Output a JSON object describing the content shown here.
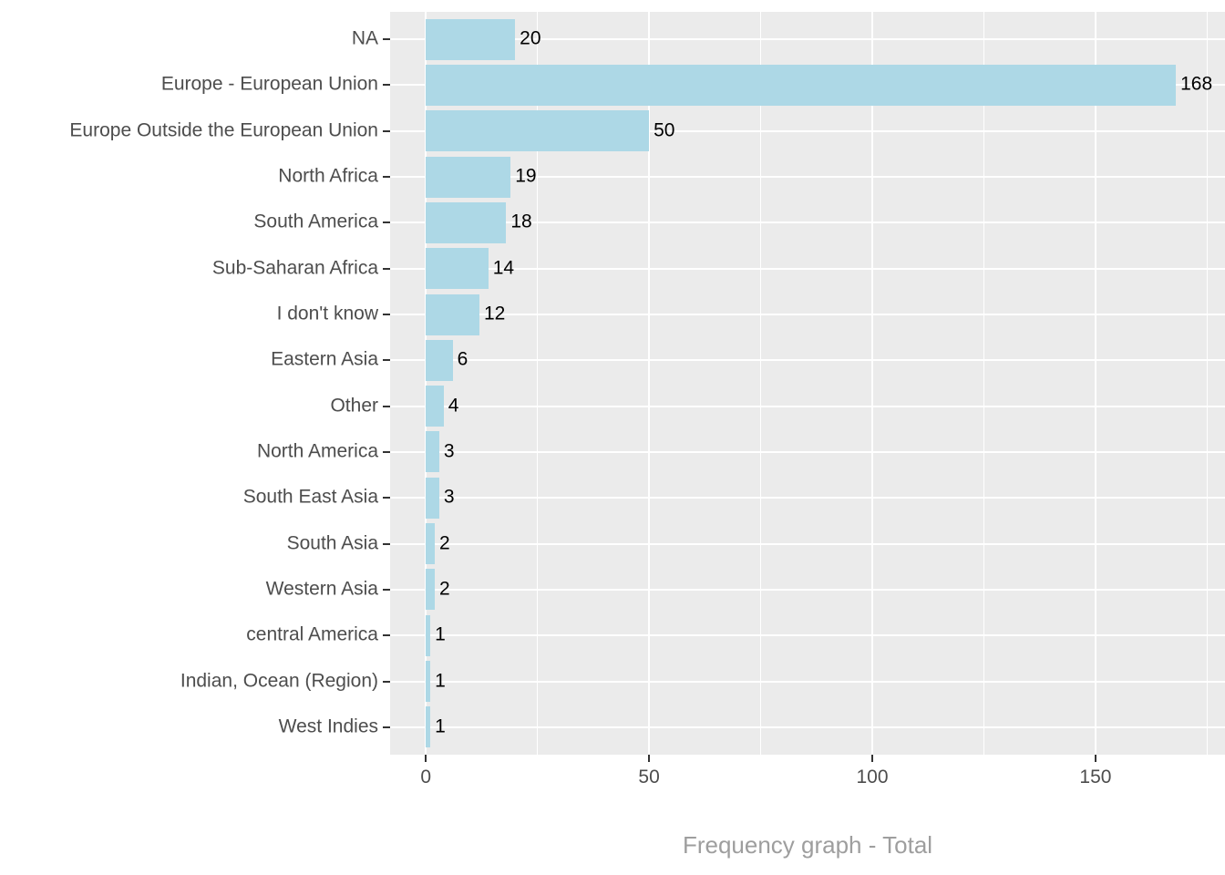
{
  "chart_data": {
    "type": "bar",
    "orientation": "horizontal",
    "xlabel": "Frequency graph - Total",
    "ylabel": "",
    "legend": "none",
    "grid": "on",
    "categories": [
      "NA",
      "Europe - European Union",
      "Europe Outside the European Union",
      "North Africa",
      "South America",
      "Sub-Saharan Africa",
      "I don't know",
      "Eastern Asia",
      "Other",
      "North America",
      "South East Asia",
      "South Asia",
      "Western Asia",
      "central America",
      "Indian, Ocean (Region)",
      "West Indies"
    ],
    "values": [
      20,
      168,
      50,
      19,
      18,
      14,
      12,
      6,
      4,
      3,
      3,
      2,
      2,
      1,
      1,
      1
    ],
    "x_ticks_major": [
      0,
      50,
      100,
      150
    ],
    "x_ticks_minor": [
      25,
      75,
      125,
      175
    ],
    "xlim": [
      -8,
      179
    ],
    "colors": {
      "bar_fill": "#ADD8E6",
      "panel_bg": "#EBEBEB",
      "grid": "#FFFFFF",
      "axis_text": "#4D4D4D",
      "value_label": "#000000",
      "axis_title": "#9E9E9E",
      "tick_mark": "#333333"
    }
  }
}
